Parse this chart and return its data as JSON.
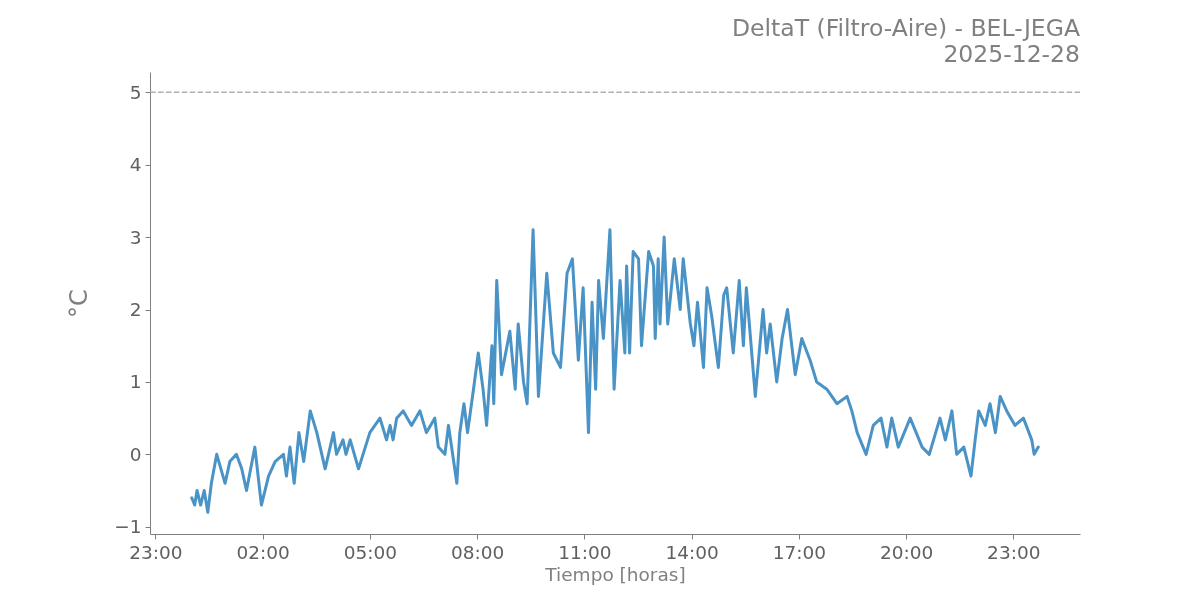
{
  "chart_data": {
    "type": "line",
    "title": "DeltaT (Filtro-Aire) - BEL-JEGA",
    "subtitle": "2025-12-28",
    "xlabel": "Tiempo [horas]",
    "ylabel": "°C",
    "x": [
      "2025-12-28T00:01",
      "2025-12-28T00:06",
      "2025-12-28T00:10",
      "2025-12-28T00:16",
      "2025-12-28T00:22",
      "2025-12-28T00:28",
      "2025-12-28T00:34",
      "2025-12-28T00:43",
      "2025-12-28T00:50",
      "2025-12-28T00:57",
      "2025-12-28T01:05",
      "2025-12-28T01:16",
      "2025-12-28T01:25",
      "2025-12-28T01:33",
      "2025-12-28T01:40",
      "2025-12-28T01:47",
      "2025-12-28T01:58",
      "2025-12-28T02:10",
      "2025-12-28T02:21",
      "2025-12-28T02:35",
      "2025-12-28T02:40",
      "2025-12-28T02:46",
      "2025-12-28T02:53",
      "2025-12-28T03:01",
      "2025-12-28T03:09",
      "2025-12-28T03:20",
      "2025-12-28T03:31",
      "2025-12-28T03:45",
      "2025-12-28T03:59",
      "2025-12-28T04:04",
      "2025-12-28T04:15",
      "2025-12-28T04:20",
      "2025-12-28T04:27",
      "2025-12-28T04:41",
      "2025-12-28T05:00",
      "2025-12-28T05:17",
      "2025-12-28T05:28",
      "2025-12-28T05:34",
      "2025-12-28T05:39",
      "2025-12-28T05:45",
      "2025-12-28T05:56",
      "2025-12-28T06:10",
      "2025-12-28T06:24",
      "2025-12-28T06:35",
      "2025-12-28T06:49",
      "2025-12-28T06:55",
      "2025-12-28T07:06",
      "2025-12-28T07:12",
      "2025-12-28T07:26",
      "2025-12-28T07:31",
      "2025-12-28T07:38",
      "2025-12-28T07:44",
      "2025-12-28T07:54",
      "2025-12-28T08:02",
      "2025-12-28T08:10",
      "2025-12-28T08:16",
      "2025-12-28T08:25",
      "2025-12-28T08:28",
      "2025-12-28T08:33",
      "2025-12-28T08:41",
      "2025-12-28T08:55",
      "2025-12-28T09:04",
      "2025-12-28T09:09",
      "2025-12-28T09:18",
      "2025-12-28T09:24",
      "2025-12-28T09:34",
      "2025-12-28T09:43",
      "2025-12-28T09:57",
      "2025-12-28T10:08",
      "2025-12-28T10:20",
      "2025-12-28T10:31",
      "2025-12-28T10:40",
      "2025-12-28T10:50",
      "2025-12-28T10:58",
      "2025-12-28T11:07",
      "2025-12-28T11:13",
      "2025-12-28T11:19",
      "2025-12-28T11:24",
      "2025-12-28T11:32",
      "2025-12-28T11:43",
      "2025-12-28T11:50",
      "2025-12-28T12:00",
      "2025-12-28T12:08",
      "2025-12-28T12:11",
      "2025-12-28T12:16",
      "2025-12-28T12:22",
      "2025-12-28T12:31",
      "2025-12-28T12:36",
      "2025-12-28T12:48",
      "2025-12-28T12:56",
      "2025-12-28T12:59",
      "2025-12-28T13:04",
      "2025-12-28T13:07",
      "2025-12-28T13:14",
      "2025-12-28T13:20",
      "2025-12-28T13:31",
      "2025-12-28T13:41",
      "2025-12-28T13:46",
      "2025-12-28T13:58",
      "2025-12-28T14:04",
      "2025-12-28T14:10",
      "2025-12-28T14:20",
      "2025-12-28T14:26",
      "2025-12-28T14:34",
      "2025-12-28T14:45",
      "2025-12-28T14:54",
      "2025-12-28T14:59",
      "2025-12-28T15:10",
      "2025-12-28T15:20",
      "2025-12-28T15:27",
      "2025-12-28T15:32",
      "2025-12-28T15:47",
      "2025-12-28T16:00",
      "2025-12-28T16:06",
      "2025-12-28T16:12",
      "2025-12-28T16:23",
      "2025-12-28T16:32",
      "2025-12-28T16:41",
      "2025-12-28T16:54",
      "2025-12-28T17:05",
      "2025-12-28T17:19",
      "2025-12-28T17:30",
      "2025-12-28T17:47",
      "2025-12-28T18:04",
      "2025-12-28T18:21",
      "2025-12-28T18:29",
      "2025-12-28T18:38",
      "2025-12-28T18:53",
      "2025-12-28T19:05",
      "2025-12-28T19:18",
      "2025-12-28T19:28",
      "2025-12-28T19:36",
      "2025-12-28T19:47",
      "2025-12-28T20:07",
      "2025-12-28T20:27",
      "2025-12-28T20:39",
      "2025-12-28T20:57",
      "2025-12-28T21:06",
      "2025-12-28T21:17",
      "2025-12-28T21:25",
      "2025-12-28T21:37",
      "2025-12-28T21:49",
      "2025-12-28T21:56",
      "2025-12-28T22:02",
      "2025-12-28T22:13",
      "2025-12-28T22:21",
      "2025-12-28T22:30",
      "2025-12-28T22:38",
      "2025-12-28T22:49",
      "2025-12-28T23:03",
      "2025-12-28T23:17",
      "2025-12-28T23:31",
      "2025-12-28T23:35",
      "2025-12-28T23:42"
    ],
    "series": [
      {
        "color": "#4a93c6",
        "values": [
          -0.6,
          -0.7,
          -0.5,
          -0.7,
          -0.5,
          -0.8,
          -0.4,
          0.0,
          -0.2,
          -0.4,
          -0.1,
          0.0,
          -0.2,
          -0.5,
          -0.2,
          0.1,
          -0.7,
          -0.3,
          -0.1,
          0.0,
          -0.3,
          0.1,
          -0.4,
          0.3,
          -0.1,
          0.6,
          0.3,
          -0.2,
          0.3,
          0.0,
          0.2,
          0.0,
          0.2,
          -0.2,
          0.3,
          0.5,
          0.2,
          0.4,
          0.2,
          0.5,
          0.6,
          0.4,
          0.6,
          0.3,
          0.5,
          0.1,
          0.0,
          0.4,
          -0.4,
          0.3,
          0.7,
          0.3,
          0.9,
          1.4,
          0.9,
          0.4,
          1.5,
          0.7,
          2.4,
          1.1,
          1.7,
          0.9,
          1.8,
          1.0,
          0.7,
          3.1,
          0.8,
          2.5,
          1.4,
          1.2,
          2.5,
          2.7,
          1.3,
          2.3,
          0.3,
          2.1,
          0.9,
          2.4,
          1.6,
          3.1,
          0.9,
          2.4,
          1.4,
          2.6,
          1.4,
          2.8,
          2.7,
          1.5,
          2.8,
          2.6,
          1.6,
          2.7,
          1.8,
          3.0,
          1.8,
          2.7,
          2.0,
          2.7,
          1.8,
          1.5,
          2.1,
          1.2,
          2.3,
          1.9,
          1.2,
          2.2,
          2.3,
          1.4,
          2.4,
          1.5,
          2.3,
          0.8,
          2.0,
          1.4,
          1.8,
          1.0,
          1.6,
          2.0,
          1.1,
          1.6,
          1.3,
          1.0,
          0.9,
          0.7,
          0.8,
          0.6,
          0.3,
          0.0,
          0.4,
          0.5,
          0.1,
          0.5,
          0.1,
          0.5,
          0.1,
          0.0,
          0.5,
          0.2,
          0.6,
          0.0,
          0.1,
          -0.3,
          0.2,
          0.6,
          0.4,
          0.7,
          0.3,
          0.8,
          0.6,
          0.4,
          0.5,
          0.2,
          0.0,
          0.1
        ]
      }
    ],
    "xlim": [
      "2025-12-27T22:51",
      "2025-12-29T00:52"
    ],
    "xticks": [
      {
        "value": "2025-12-27T23:00",
        "label": "23:00"
      },
      {
        "value": "2025-12-28T02:00",
        "label": "02:00"
      },
      {
        "value": "2025-12-28T05:00",
        "label": "05:00"
      },
      {
        "value": "2025-12-28T08:00",
        "label": "08:00"
      },
      {
        "value": "2025-12-28T11:00",
        "label": "11:00"
      },
      {
        "value": "2025-12-28T14:00",
        "label": "14:00"
      },
      {
        "value": "2025-12-28T17:00",
        "label": "17:00"
      },
      {
        "value": "2025-12-28T20:00",
        "label": "20:00"
      },
      {
        "value": "2025-12-28T23:00",
        "label": "23:00"
      }
    ],
    "ylim": [
      -1.1,
      5.28
    ],
    "yticks": [
      -1,
      0,
      1,
      2,
      3,
      4,
      5
    ],
    "ref_lines": [
      {
        "axis": "y",
        "value": 5,
        "color": "#b0b0b0",
        "line_style": "dashed"
      }
    ]
  }
}
